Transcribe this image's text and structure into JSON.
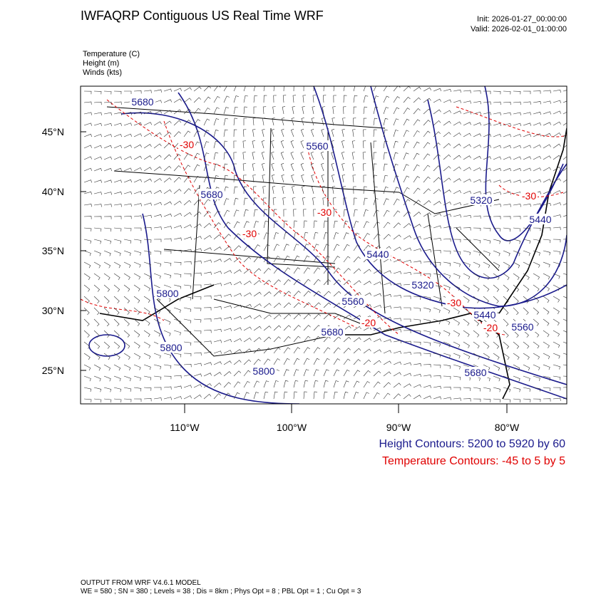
{
  "header": {
    "title": "IWFAQRP Contiguous US Real Time WRF",
    "init": "Init: 2026-01-27_00:00:00",
    "valid": "Valid: 2026-02-01_01:00:00"
  },
  "fields": [
    "Temperature   (C)",
    "Height   (m)",
    "Winds   (kts)"
  ],
  "map": {
    "lat_labels": [
      "45°N",
      "40°N",
      "35°N",
      "30°N",
      "25°N"
    ],
    "lon_labels": [
      "110°W",
      "100°W",
      "90°W",
      "80°W"
    ],
    "height_labels": [
      "5680",
      "5560",
      "5680",
      "5320",
      "5440",
      "5440",
      "5320",
      "5800",
      "5560",
      "5440",
      "5560",
      "5680",
      "5800",
      "5800",
      "5680"
    ],
    "temp_labels": [
      "-30",
      "-30",
      "-30",
      "-30",
      "-30",
      "-20",
      "-20"
    ]
  },
  "contour_info": [
    "Height Contours: 5200 to 5920 by 60",
    "Temperature Contours: -45 to 5 by 5"
  ],
  "footer": [
    "OUTPUT FROM WRF V4.6.1 MODEL",
    "WE = 580 ; SN = 380 ; Levels = 38 ; Dis = 8km ; Phys Opt = 8 ; PBL Opt = 1 ; Cu Opt = 3"
  ]
}
